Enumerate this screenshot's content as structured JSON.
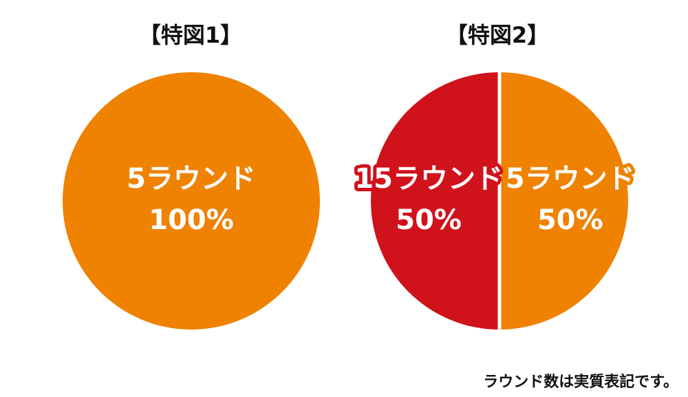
{
  "colors": {
    "orange": "#EF8200",
    "red": "#D0121B",
    "divider": "#ffffff",
    "title": "#111111"
  },
  "chart_data": [
    {
      "type": "pie",
      "title": "【特図1】",
      "slices": [
        {
          "label": "5ラウンド",
          "value": 100,
          "value_label": "100%",
          "color": "#EF8200"
        }
      ]
    },
    {
      "type": "pie",
      "title": "【特図2】",
      "slices": [
        {
          "label": "5ラウンド",
          "value": 50,
          "value_label": "50%",
          "color": "#EF8200"
        },
        {
          "label": "15ラウンド",
          "value": 50,
          "value_label": "50%",
          "color": "#D0121B"
        }
      ]
    }
  ],
  "footnote": "ラウンド数は実質表記です。"
}
